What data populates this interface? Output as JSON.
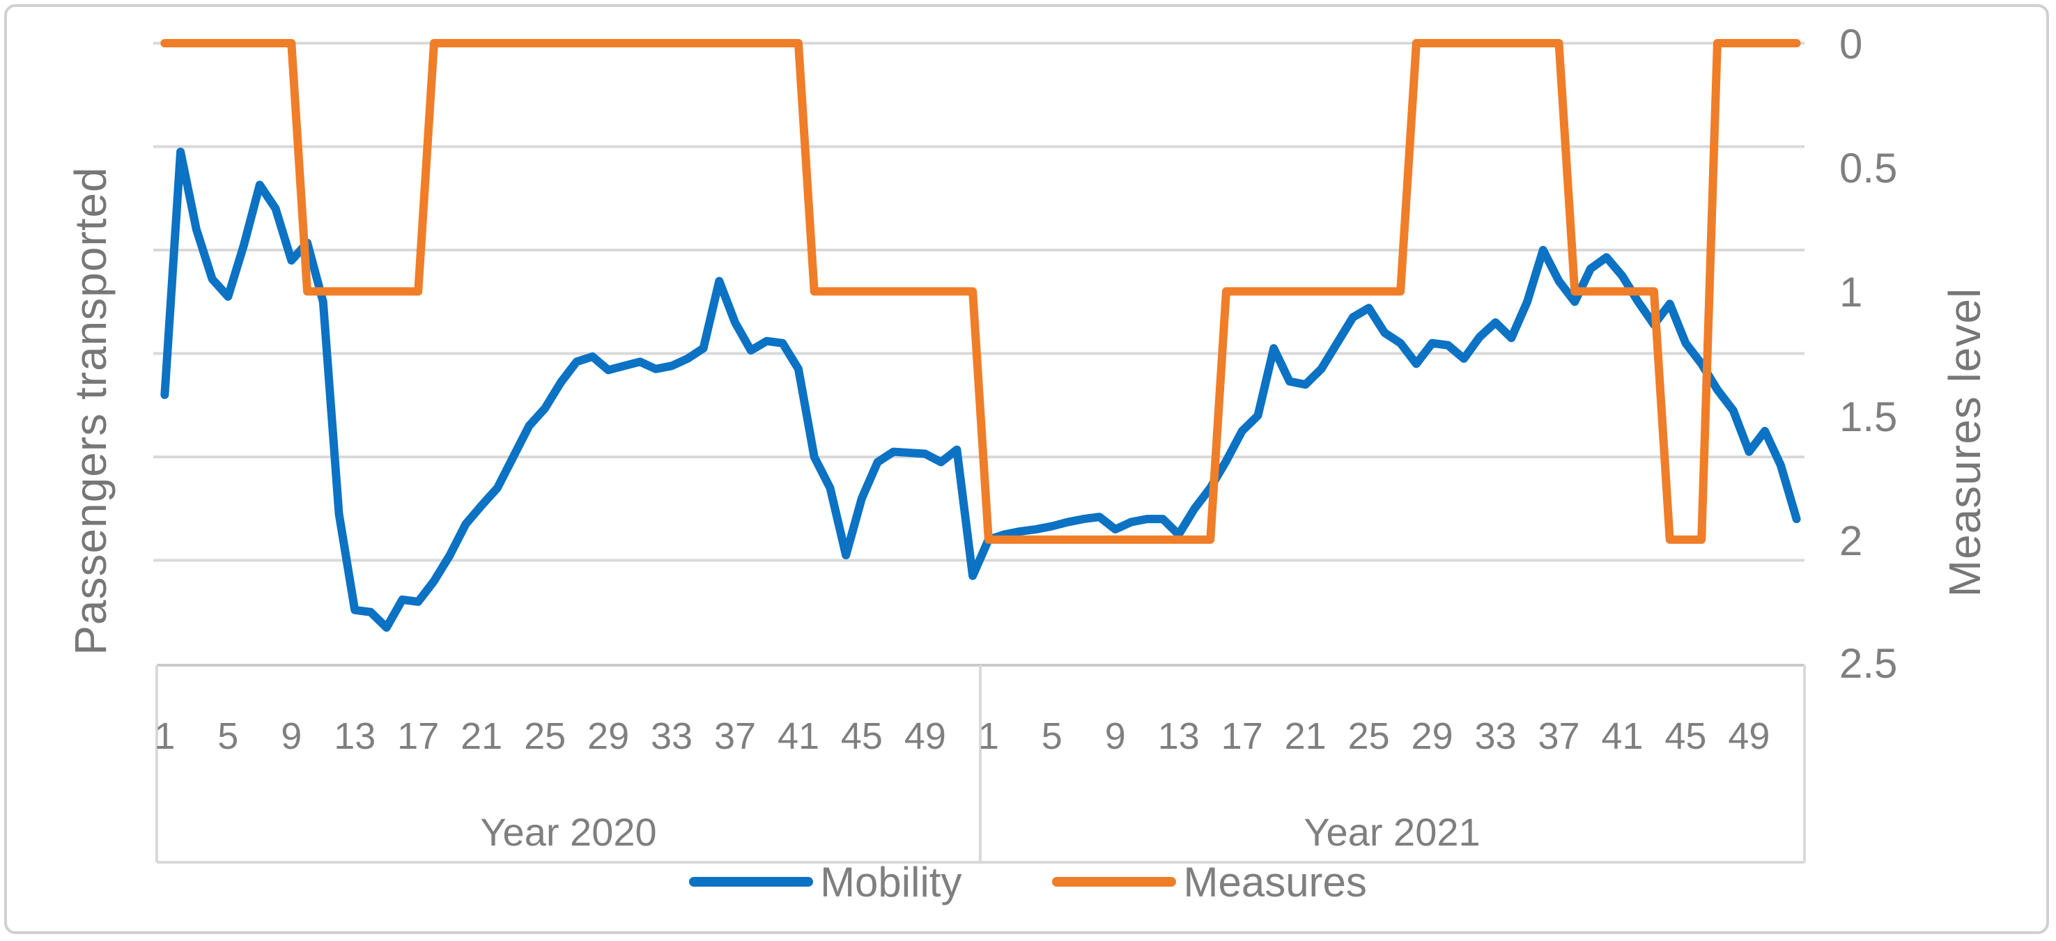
{
  "figure": {
    "left_axis_title": "Passengers transported",
    "right_axis_title": "Measures level",
    "right_axis_tick_labels": [
      "0",
      "0.5",
      "1",
      "1.5",
      "2",
      "2.5"
    ],
    "x_tick_labels": [
      "1",
      "5",
      "9",
      "13",
      "17",
      "21",
      "25",
      "29",
      "33",
      "37",
      "41",
      "45",
      "49"
    ],
    "year_group_labels": [
      "Year 2020",
      "Year 2021"
    ],
    "legend": {
      "items": [
        {
          "label": "Mobility",
          "color": "#0b72c4"
        },
        {
          "label": "Measures",
          "color": "#f07d28"
        }
      ]
    }
  },
  "colors": {
    "mobility_blue": "#0b72c4",
    "measures_orange": "#f07d28",
    "gridline_gray": "#d9d9d9",
    "axis_line_gray": "#c9c9c9",
    "text_gray": "#7f7f7f",
    "frame_gray": "#d2cfcf"
  },
  "chart_data": {
    "type": "line",
    "title": "",
    "x_axis": {
      "categories": "weeks 1-52 of Year 2020 followed by weeks 1-52 of Year 2021",
      "tick_labels_shown": [
        1,
        5,
        9,
        13,
        17,
        21,
        25,
        29,
        33,
        37,
        41,
        45,
        49
      ],
      "group_labels": [
        "Year 2020",
        "Year 2021"
      ],
      "weeks_per_year": 52
    },
    "left_axis": {
      "title": "Passengers transported",
      "numeric_tick_labels_visible": false,
      "note": "Mobility values are read in relative gridline units; 0 = plot bottom, 6 = plot top, one horizontal gridline per unit",
      "range": [
        0,
        6
      ],
      "gridlines_visible": true
    },
    "right_axis": {
      "title": "Measures level",
      "ticks": [
        0,
        0.5,
        1,
        1.5,
        2,
        2.5
      ],
      "inverted": true,
      "note": "0 is at the top of the plot, 2.5 at the bottom"
    },
    "legend_position": "bottom",
    "series": [
      {
        "name": "Mobility",
        "axis": "left",
        "color": "#0b72c4",
        "values_2020": [
          2.6,
          4.95,
          4.2,
          3.72,
          3.55,
          4.05,
          4.63,
          4.4,
          3.9,
          4.07,
          3.5,
          1.45,
          0.52,
          0.5,
          0.35,
          0.62,
          0.6,
          0.8,
          1.05,
          1.35,
          1.53,
          1.7,
          2.0,
          2.3,
          2.47,
          2.72,
          2.92,
          2.97,
          2.84,
          2.88,
          2.92,
          2.85,
          2.88,
          2.95,
          3.05,
          3.7,
          3.3,
          3.03,
          3.12,
          3.1,
          2.85,
          2.0,
          1.7,
          1.05,
          1.6,
          1.95,
          2.05,
          2.04,
          2.03,
          1.95,
          2.07,
          0.85
        ],
        "values_2021": [
          1.2,
          1.25,
          1.28,
          1.3,
          1.33,
          1.37,
          1.4,
          1.42,
          1.3,
          1.37,
          1.4,
          1.4,
          1.25,
          1.5,
          1.7,
          1.96,
          2.25,
          2.4,
          3.05,
          2.73,
          2.7,
          2.85,
          3.1,
          3.35,
          3.44,
          3.2,
          3.1,
          2.9,
          3.1,
          3.08,
          2.95,
          3.16,
          3.3,
          3.15,
          3.5,
          4.0,
          3.7,
          3.5,
          3.82,
          3.93,
          3.75,
          3.5,
          3.28,
          3.48,
          3.1,
          2.9,
          2.65,
          2.45,
          2.05,
          2.25,
          1.92,
          1.4
        ]
      },
      {
        "name": "Measures",
        "axis": "right",
        "color": "#f07d28",
        "values_2020": [
          0,
          0,
          0,
          0,
          0,
          0,
          0,
          0,
          0,
          1,
          1,
          1,
          1,
          1,
          1,
          1,
          1,
          0,
          0,
          0,
          0,
          0,
          0,
          0,
          0,
          0,
          0,
          0,
          0,
          0,
          0,
          0,
          0,
          0,
          0,
          0,
          0,
          0,
          0,
          0,
          0,
          1,
          1,
          1,
          1,
          1,
          1,
          1,
          1,
          1,
          1,
          1
        ],
        "values_2021": [
          2,
          2,
          2,
          2,
          2,
          2,
          2,
          2,
          2,
          2,
          2,
          2,
          2,
          2,
          2,
          1,
          1,
          1,
          1,
          1,
          1,
          1,
          1,
          1,
          1,
          1,
          1,
          0,
          0,
          0,
          0,
          0,
          0,
          0,
          0,
          0,
          0,
          1,
          1,
          1,
          1,
          1,
          1,
          2,
          2,
          2,
          0,
          0,
          0,
          0,
          0,
          0
        ]
      }
    ]
  }
}
